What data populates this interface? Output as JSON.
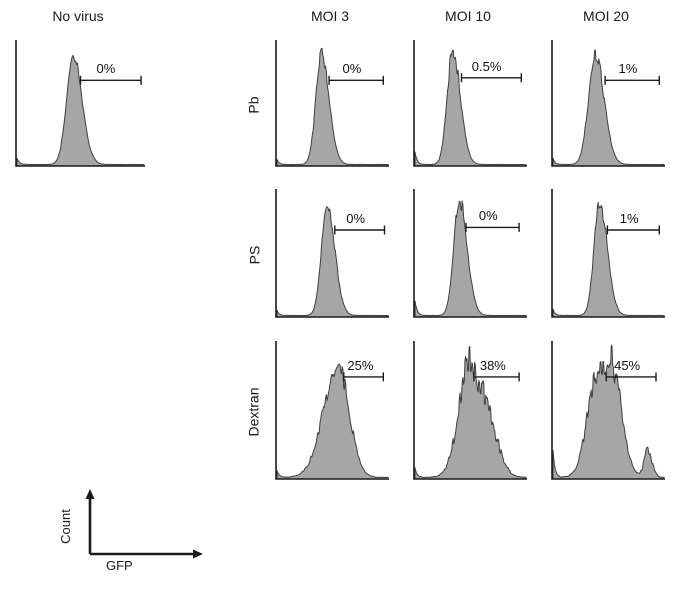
{
  "figure": {
    "column_headers": [
      "No virus",
      "MOI 3",
      "MOI 10",
      "MOI 20"
    ],
    "row_labels": [
      "Pb",
      "PS",
      "Dextran"
    ],
    "axis": {
      "x_label": "GFP",
      "y_label": "Count"
    }
  },
  "colors": {
    "hist_fill": "#a6a6a6",
    "hist_stroke": "#3f3f3f",
    "axis": "#1a1a1a",
    "text": "#111111"
  },
  "chart_data": {
    "type": "area",
    "subtype": "flow-cytometry-histograms",
    "title": "",
    "xlabel": "GFP",
    "ylabel": "Count",
    "columns": [
      "No virus",
      "MOI 3",
      "MOI 10",
      "MOI 20"
    ],
    "rows": [
      "Pb",
      "PS",
      "Dextran"
    ],
    "gate_percentages": {
      "No virus": [
        "0%"
      ],
      "Pb": [
        "0%",
        "0.5%",
        "1%"
      ],
      "PS": [
        "0%",
        "0%",
        "1%"
      ],
      "Dextran": [
        "25%",
        "38%",
        "45%"
      ]
    },
    "panels": [
      {
        "row": null,
        "column": "No virus",
        "percent": "0%",
        "gate": {
          "x1": 0.5,
          "x2": 0.97,
          "y": 0.32
        },
        "peaks": [
          {
            "c": 0.44,
            "sl": 0.05,
            "sr": 0.07,
            "h": 0.88
          }
        ],
        "jitter": 0.05,
        "left_spike": 0.05,
        "seed": 7
      },
      {
        "row": "Pb",
        "column": "MOI 3",
        "percent": "0%",
        "gate": {
          "x1": 0.47,
          "x2": 0.95,
          "y": 0.32
        },
        "peaks": [
          {
            "c": 0.4,
            "sl": 0.05,
            "sr": 0.07,
            "h": 0.88
          }
        ],
        "jitter": 0.05,
        "left_spike": 0.04,
        "seed": 11
      },
      {
        "row": "Pb",
        "column": "MOI 10",
        "percent": "0.5%",
        "gate": {
          "x1": 0.42,
          "x2": 0.95,
          "y": 0.3
        },
        "peaks": [
          {
            "c": 0.34,
            "sl": 0.05,
            "sr": 0.07,
            "h": 0.9
          }
        ],
        "jitter": 0.06,
        "left_spike": 0.1,
        "seed": 13
      },
      {
        "row": "Pb",
        "column": "MOI 20",
        "percent": "1%",
        "gate": {
          "x1": 0.47,
          "x2": 0.95,
          "y": 0.32
        },
        "peaks": [
          {
            "c": 0.38,
            "sl": 0.06,
            "sr": 0.08,
            "h": 0.88
          }
        ],
        "jitter": 0.06,
        "left_spike": 0.05,
        "seed": 17
      },
      {
        "row": "PS",
        "column": "MOI 3",
        "percent": "0%",
        "gate": {
          "x1": 0.52,
          "x2": 0.96,
          "y": 0.32
        },
        "peaks": [
          {
            "c": 0.45,
            "sl": 0.05,
            "sr": 0.07,
            "h": 0.88
          }
        ],
        "jitter": 0.05,
        "left_spike": 0.04,
        "seed": 19
      },
      {
        "row": "PS",
        "column": "MOI 10",
        "percent": "0%",
        "gate": {
          "x1": 0.46,
          "x2": 0.93,
          "y": 0.3
        },
        "peaks": [
          {
            "c": 0.4,
            "sl": 0.05,
            "sr": 0.07,
            "h": 0.9
          }
        ],
        "jitter": 0.06,
        "left_spike": 0.12,
        "seed": 23
      },
      {
        "row": "PS",
        "column": "MOI 20",
        "percent": "1%",
        "gate": {
          "x1": 0.49,
          "x2": 0.95,
          "y": 0.32
        },
        "peaks": [
          {
            "c": 0.42,
            "sl": 0.05,
            "sr": 0.07,
            "h": 0.88
          }
        ],
        "jitter": 0.06,
        "left_spike": 0.05,
        "seed": 29
      },
      {
        "row": "Dextran",
        "column": "MOI 3",
        "percent": "25%",
        "gate": {
          "x1": 0.6,
          "x2": 0.95,
          "y": 0.26
        },
        "peaks": [
          {
            "c": 0.55,
            "sl": 0.13,
            "sr": 0.1,
            "h": 0.82
          }
        ],
        "jitter": 0.09,
        "left_spike": 0.05,
        "seed": 31
      },
      {
        "row": "Dextran",
        "column": "MOI 10",
        "percent": "38%",
        "gate": {
          "x1": 0.53,
          "x2": 0.93,
          "y": 0.26
        },
        "peaks": [
          {
            "c": 0.5,
            "sl": 0.1,
            "sr": 0.07,
            "h": 0.85
          },
          {
            "c": 0.64,
            "sl": 0.05,
            "sr": 0.1,
            "h": 0.45
          }
        ],
        "jitter": 0.13,
        "left_spike": 0.08,
        "seed": 37
      },
      {
        "row": "Dextran",
        "column": "MOI 20",
        "percent": "45%",
        "gate": {
          "x1": 0.48,
          "x2": 0.92,
          "y": 0.26
        },
        "peaks": [
          {
            "c": 0.4,
            "sl": 0.09,
            "sr": 0.06,
            "h": 0.72
          },
          {
            "c": 0.53,
            "sl": 0.06,
            "sr": 0.09,
            "h": 0.78
          },
          {
            "c": 0.85,
            "sl": 0.03,
            "sr": 0.04,
            "h": 0.2
          }
        ],
        "jitter": 0.13,
        "left_spike": 0.18,
        "seed": 41
      }
    ]
  }
}
